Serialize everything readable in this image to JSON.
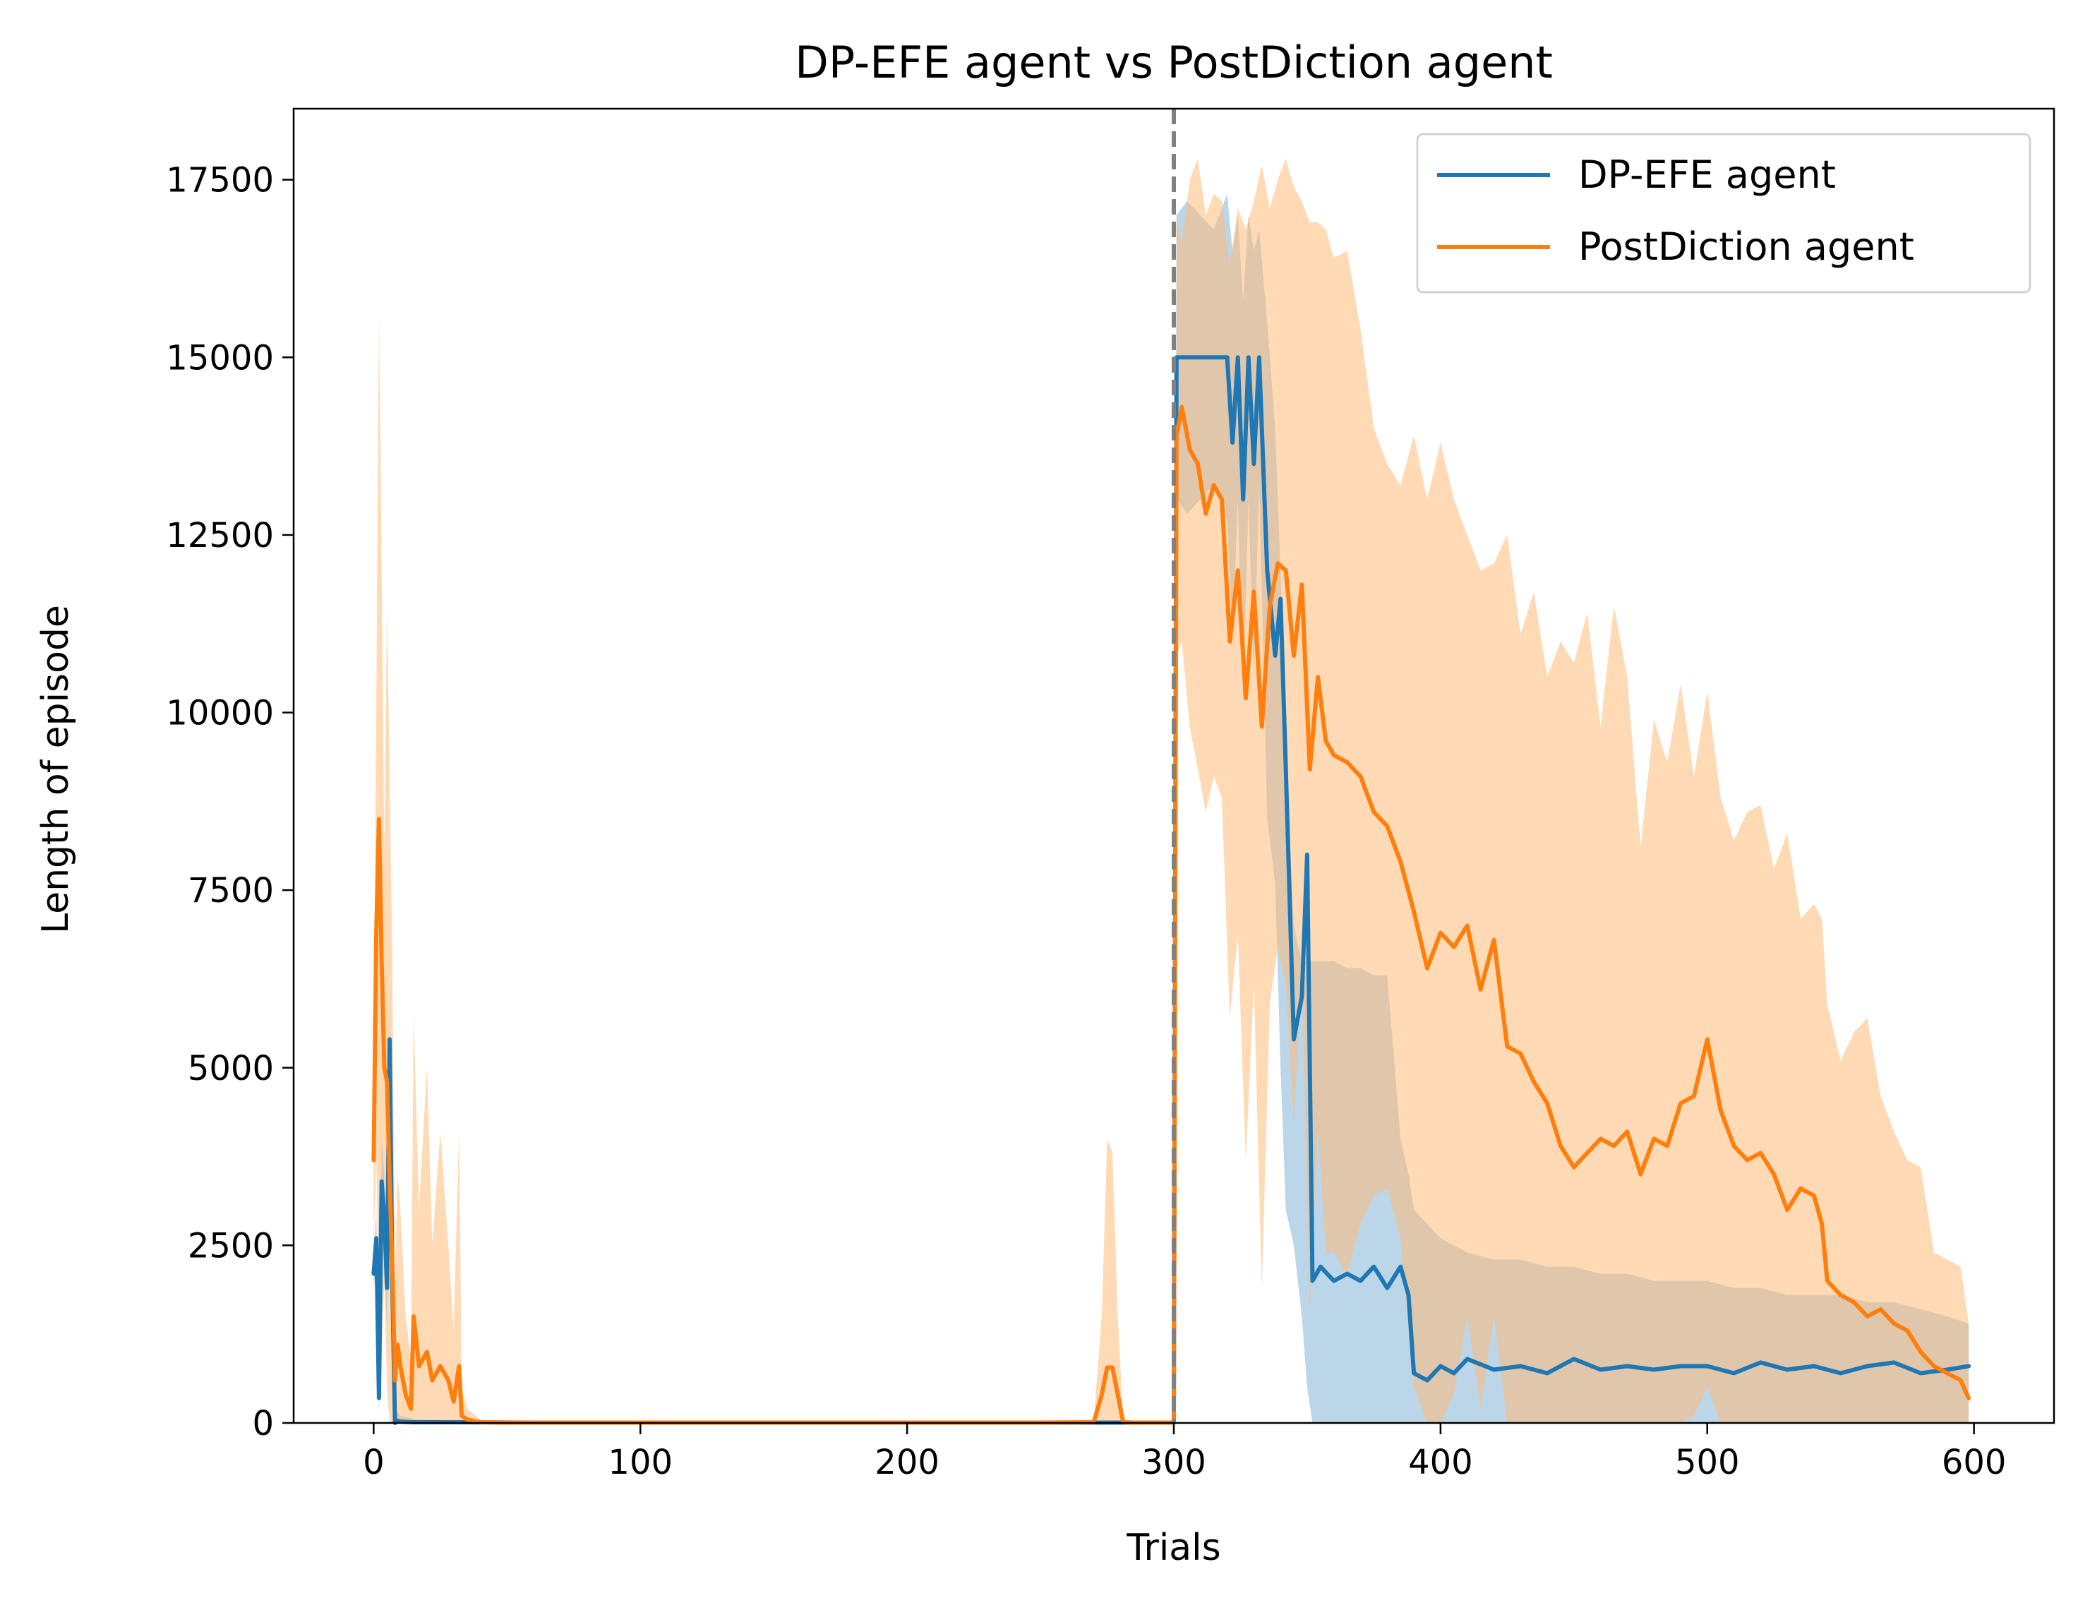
{
  "chart_data": {
    "type": "line",
    "title": "DP-EFE agent vs PostDiction agent",
    "xlabel": "Trials",
    "ylabel": "Length of episode",
    "xlim": [
      -30,
      630
    ],
    "ylim": [
      0,
      18500
    ],
    "xticks": [
      0,
      100,
      200,
      300,
      400,
      500,
      600
    ],
    "yticks": [
      0,
      2500,
      5000,
      7500,
      10000,
      12500,
      15000,
      17500
    ],
    "grid": false,
    "legend": "top-right",
    "vline": {
      "x": 300,
      "color": "#808080",
      "style": "dashed"
    },
    "series": [
      {
        "name": "DP-EFE agent",
        "color": "#1f77b4",
        "band_color": "#1f77b4",
        "x": [
          0,
          1,
          2,
          3,
          4,
          5,
          6,
          7,
          8,
          9,
          10,
          12,
          15,
          20,
          30,
          60,
          100,
          150,
          200,
          250,
          280,
          299,
          300,
          301,
          305,
          310,
          315,
          320,
          322,
          324,
          326,
          328,
          330,
          332,
          335,
          338,
          340,
          342,
          345,
          348,
          350,
          352,
          355,
          360,
          365,
          370,
          375,
          380,
          385,
          388,
          390,
          395,
          400,
          405,
          410,
          420,
          430,
          440,
          450,
          460,
          470,
          480,
          490,
          500,
          510,
          520,
          530,
          540,
          550,
          560,
          570,
          580,
          590,
          598
        ],
        "y": [
          2100,
          2600,
          350,
          3400,
          2900,
          1900,
          5400,
          2000,
          0,
          30,
          20,
          15,
          10,
          10,
          10,
          5,
          5,
          5,
          5,
          5,
          5,
          5,
          10,
          15000,
          15000,
          15000,
          15000,
          15000,
          13800,
          15000,
          13000,
          15000,
          13500,
          15000,
          12000,
          10800,
          11600,
          9200,
          5400,
          6000,
          8000,
          2000,
          2200,
          2000,
          2100,
          2000,
          2200,
          1900,
          2200,
          1800,
          700,
          600,
          800,
          700,
          900,
          750,
          800,
          700,
          900,
          750,
          800,
          750,
          800,
          800,
          700,
          850,
          750,
          800,
          700,
          800,
          850,
          700,
          750,
          800
        ],
        "upper": [
          2300,
          3000,
          600,
          4000,
          3500,
          2500,
          6000,
          2500,
          200,
          150,
          100,
          80,
          60,
          50,
          40,
          30,
          20,
          20,
          20,
          20,
          20,
          20,
          30,
          17000,
          17200,
          17000,
          16800,
          17300,
          16500,
          17000,
          15800,
          17000,
          16500,
          16800,
          15500,
          14000,
          12000,
          9500,
          7000,
          6500,
          6500,
          6500,
          6500,
          6500,
          6400,
          6400,
          6300,
          6300,
          4000,
          3500,
          3000,
          2800,
          2600,
          2500,
          2400,
          2300,
          2300,
          2200,
          2200,
          2100,
          2100,
          2000,
          2000,
          2000,
          1900,
          1900,
          1800,
          1800,
          1800,
          1700,
          1700,
          1600,
          1500,
          1400
        ],
        "lower": [
          1900,
          2200,
          100,
          2800,
          2300,
          1300,
          4800,
          1500,
          0,
          0,
          0,
          0,
          0,
          0,
          0,
          0,
          0,
          0,
          0,
          0,
          0,
          0,
          0,
          13000,
          12800,
          13000,
          13200,
          12700,
          11000,
          13000,
          10200,
          13000,
          10500,
          13200,
          8500,
          7600,
          5000,
          3000,
          2500,
          1500,
          500,
          0,
          0,
          0,
          0,
          0,
          0,
          0,
          0,
          0,
          0,
          0,
          0,
          0,
          0,
          0,
          0,
          0,
          0,
          0,
          0,
          0,
          0,
          0,
          0,
          0,
          0,
          0,
          0,
          0,
          0,
          0,
          0,
          0
        ]
      },
      {
        "name": "PostDiction agent",
        "color": "#ff7f0e",
        "band_color": "#ffbb78",
        "x": [
          0,
          1,
          2,
          3,
          4,
          5,
          6,
          7,
          8,
          9,
          10,
          12,
          14,
          15,
          17,
          20,
          22,
          25,
          28,
          30,
          32,
          33,
          35,
          40,
          50,
          100,
          150,
          200,
          250,
          270,
          273,
          275,
          277,
          279,
          281,
          285,
          299,
          300,
          301,
          303,
          306,
          309,
          312,
          315,
          318,
          321,
          324,
          327,
          330,
          333,
          336,
          339,
          342,
          345,
          348,
          351,
          354,
          357,
          360,
          365,
          370,
          375,
          380,
          385,
          390,
          395,
          400,
          405,
          410,
          415,
          420,
          425,
          430,
          435,
          440,
          445,
          450,
          455,
          460,
          465,
          470,
          475,
          480,
          485,
          490,
          495,
          500,
          505,
          510,
          515,
          520,
          525,
          530,
          535,
          540,
          543,
          545,
          550,
          555,
          560,
          565,
          570,
          575,
          580,
          585,
          590,
          595,
          598
        ],
        "y": [
          3700,
          6900,
          8500,
          6500,
          5000,
          4800,
          3400,
          2200,
          600,
          1100,
          800,
          400,
          200,
          1500,
          800,
          1000,
          600,
          800,
          600,
          300,
          800,
          100,
          50,
          10,
          5,
          5,
          5,
          5,
          5,
          10,
          400,
          780,
          780,
          400,
          10,
          5,
          5,
          10,
          13900,
          14300,
          13700,
          13500,
          12800,
          13200,
          13000,
          11000,
          12000,
          10200,
          11700,
          9800,
          11500,
          12100,
          12000,
          10800,
          11800,
          9200,
          10500,
          9600,
          9400,
          9300,
          9100,
          8600,
          8400,
          7900,
          7200,
          6400,
          6900,
          6700,
          7000,
          6100,
          6800,
          5300,
          5200,
          4800,
          4500,
          3900,
          3600,
          3800,
          4000,
          3900,
          4100,
          3500,
          4000,
          3900,
          4500,
          4600,
          5400,
          4400,
          3900,
          3700,
          3800,
          3500,
          3000,
          3300,
          3200,
          2800,
          2000,
          1800,
          1700,
          1500,
          1600,
          1400,
          1300,
          1000,
          800,
          700,
          600,
          350
        ],
        "upper": [
          5000,
          10000,
          15600,
          12000,
          8000,
          11500,
          9000,
          6500,
          2000,
          3500,
          3000,
          1500,
          900,
          5800,
          3000,
          5000,
          2500,
          4100,
          2500,
          1300,
          4100,
          500,
          200,
          50,
          20,
          20,
          20,
          20,
          20,
          50,
          1500,
          4000,
          3800,
          1500,
          50,
          20,
          20,
          50,
          17000,
          16600,
          17500,
          17800,
          17000,
          17300,
          17200,
          16300,
          17100,
          16800,
          17200,
          17700,
          17100,
          17500,
          17800,
          17400,
          17200,
          16900,
          16900,
          16800,
          16400,
          16500,
          15400,
          14000,
          13500,
          13200,
          13900,
          13000,
          13800,
          13000,
          12500,
          12000,
          12100,
          12500,
          11100,
          11700,
          10500,
          11000,
          10700,
          11400,
          9800,
          11500,
          10500,
          8100,
          9900,
          9300,
          10400,
          9100,
          10300,
          8800,
          8200,
          8600,
          8700,
          7800,
          8300,
          7100,
          7300,
          7100,
          5900,
          5100,
          5500,
          5700,
          4600,
          4100,
          3700,
          3600,
          2400,
          2300,
          2200,
          1400
        ],
        "lower": [
          2500,
          3800,
          1400,
          1000,
          2000,
          500,
          0,
          0,
          0,
          0,
          0,
          0,
          0,
          0,
          0,
          0,
          0,
          0,
          0,
          0,
          0,
          0,
          0,
          0,
          0,
          0,
          0,
          0,
          0,
          0,
          0,
          0,
          0,
          0,
          0,
          0,
          0,
          0,
          10800,
          11000,
          9800,
          9200,
          8600,
          9100,
          8800,
          5700,
          6900,
          3700,
          6200,
          1900,
          5900,
          6700,
          6200,
          4200,
          6400,
          1500,
          4100,
          2400,
          2400,
          2100,
          2800,
          3200,
          3300,
          2600,
          500,
          0,
          0,
          400,
          1500,
          200,
          1500,
          0,
          0,
          0,
          0,
          0,
          0,
          0,
          0,
          0,
          0,
          0,
          0,
          0,
          0,
          100,
          500,
          0,
          0,
          0,
          0,
          0,
          0,
          0,
          0,
          0,
          0,
          0,
          0,
          0,
          0,
          0,
          0,
          0,
          0,
          0,
          0,
          0
        ]
      }
    ]
  }
}
